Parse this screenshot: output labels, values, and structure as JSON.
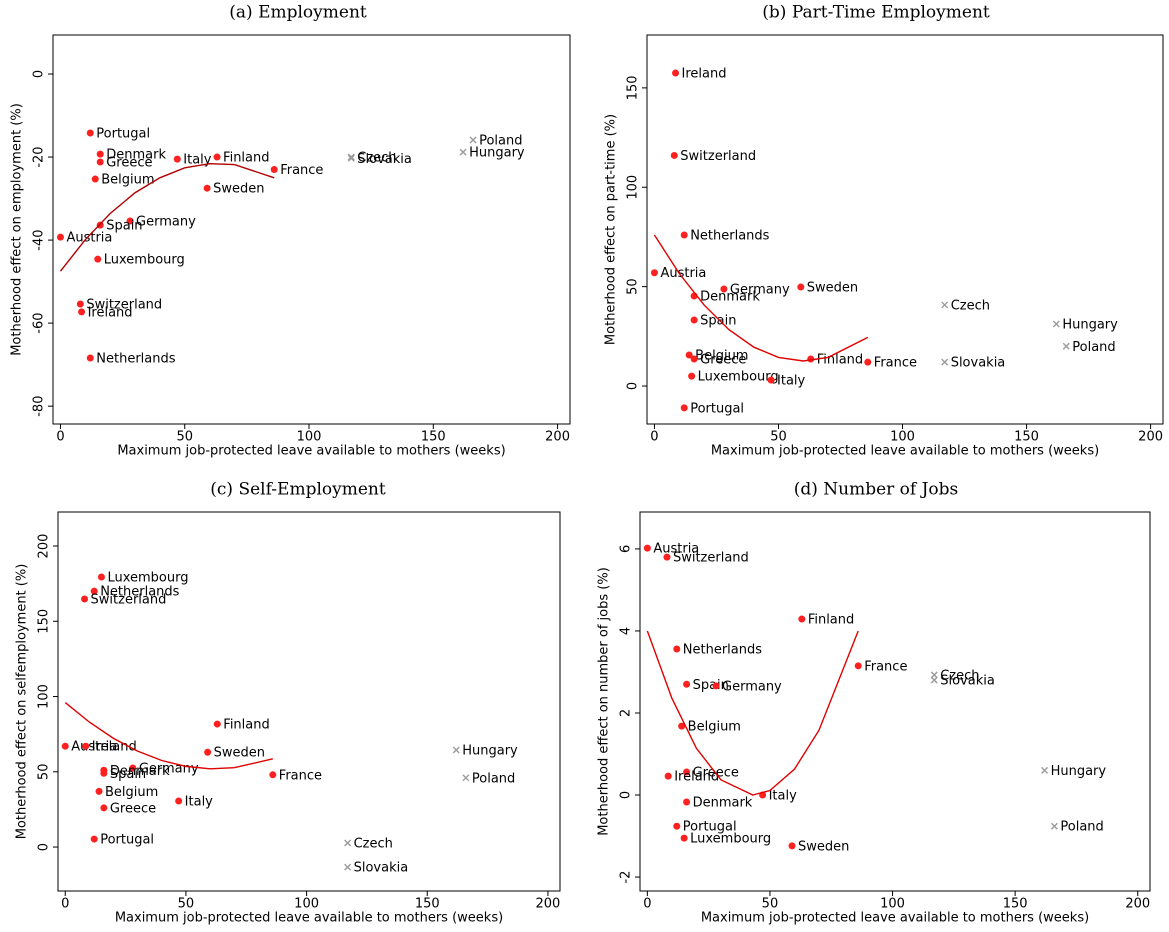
{
  "chart_data": [
    {
      "type": "scatter",
      "title": "(a) Employment",
      "xlabel": "Maximum job-protected leave available to mothers (weeks)",
      "ylabel": "Motherhood effect on employment (%)",
      "xlim": [
        -3,
        205
      ],
      "ylim": [
        -84.3,
        9.4
      ],
      "xticks": [
        0,
        50,
        100,
        150,
        200
      ],
      "yticks": [
        0,
        -20,
        -40,
        -60,
        -80
      ],
      "series": [
        {
          "marker": "circle",
          "color": "#ff2020",
          "labels": [
            "Portugal",
            "Denmark",
            "Greece",
            "Italy",
            "Finland",
            "France",
            "Belgium",
            "Sweden",
            "Germany",
            "Spain",
            "Austria",
            "Luxembourg",
            "Switzerland",
            "Ireland",
            "Netherlands"
          ],
          "x": [
            12,
            16,
            16,
            47,
            63,
            86,
            14,
            59,
            28,
            16,
            0,
            15,
            8,
            8.5,
            12
          ],
          "values": [
            -14.2,
            -19.3,
            -21.2,
            -20.5,
            -20,
            -23,
            -25.3,
            -27.5,
            -35.4,
            -36.4,
            -39.3,
            -44.6,
            -55.4,
            -57.3,
            -68.4
          ]
        },
        {
          "marker": "x",
          "color": "#9a9a9a",
          "labels": [
            "Poland",
            "Czech",
            "Slovakia",
            "Hungary"
          ],
          "x": [
            166,
            117,
            117,
            162
          ],
          "values": [
            -15.9,
            -20,
            -20.3,
            -18.8
          ]
        },
        {
          "marker": "line",
          "color": "#b00000",
          "x": [
            0,
            10,
            20,
            30,
            40,
            50,
            60,
            70,
            86
          ],
          "values": [
            -47.5,
            -39.9,
            -33.6,
            -28.6,
            -25,
            -22.6,
            -21.6,
            -21.8,
            -25
          ]
        }
      ]
    },
    {
      "type": "scatter",
      "title": "(b) Part-Time Employment",
      "xlabel": "Maximum job-protected leave available to mothers (weeks)",
      "ylabel": "Motherhood effect on part-time (%)",
      "xlim": [
        -3,
        205
      ],
      "ylim": [
        -19.1,
        176.6
      ],
      "xticks": [
        0,
        50,
        100,
        150,
        200
      ],
      "yticks": [
        0,
        50,
        100,
        150
      ],
      "series": [
        {
          "marker": "circle",
          "color": "#ff2020",
          "labels": [
            "Ireland",
            "Switzerland",
            "Netherlands",
            "Austria",
            "Germany",
            "Sweden",
            "Denmark",
            "Spain",
            "Belgium",
            "Greece",
            "Finland",
            "France",
            "Luxembourg",
            "Italy",
            "Portugal"
          ],
          "x": [
            8.5,
            8,
            12,
            0,
            28,
            59,
            16,
            16,
            14,
            16,
            63,
            86,
            15,
            47,
            12
          ],
          "values": [
            157.5,
            116,
            76,
            57,
            48.8,
            49.8,
            45.3,
            33.2,
            15.6,
            13.6,
            13.6,
            12,
            5,
            3,
            -11
          ]
        },
        {
          "marker": "x",
          "color": "#9a9a9a",
          "labels": [
            "Czech",
            "Hungary",
            "Poland",
            "Slovakia"
          ],
          "x": [
            117,
            162,
            166,
            117
          ],
          "values": [
            40.8,
            31.2,
            20,
            12
          ]
        },
        {
          "marker": "line",
          "color": "#e00000",
          "x": [
            0,
            10,
            20,
            30,
            40,
            50,
            60,
            70,
            86
          ],
          "values": [
            76,
            56.6,
            40.8,
            28.4,
            19.6,
            14.4,
            12.6,
            14.4,
            24.5
          ]
        }
      ]
    },
    {
      "type": "scatter",
      "title": "(c) Self-Employment",
      "xlabel": "Maximum job-protected leave available to mothers (weeks)",
      "ylabel": "Motherhood effect on selfemployment (%)",
      "xlim": [
        -3,
        205
      ],
      "ylim": [
        -29.2,
        222.6
      ],
      "xticks": [
        0,
        50,
        100,
        150,
        200
      ],
      "yticks": [
        0,
        50,
        100,
        150,
        200
      ],
      "series": [
        {
          "marker": "circle",
          "color": "#ff2020",
          "labels": [
            "Luxembourg",
            "Netherlands",
            "Switzerland",
            "Finland",
            "Austria",
            "Ireland",
            "Sweden",
            "Germany",
            "Denmark",
            "Spain",
            "France",
            "Belgium",
            "Italy",
            "Greece",
            "Portugal"
          ],
          "x": [
            15,
            12,
            8,
            63,
            0,
            8.5,
            59,
            28,
            16,
            16,
            86,
            14,
            47,
            16,
            12
          ],
          "values": [
            179.4,
            170,
            164.8,
            81.7,
            67,
            67,
            63,
            52.5,
            51,
            49,
            48,
            37,
            30.6,
            26,
            5.3
          ]
        },
        {
          "marker": "x",
          "color": "#9a9a9a",
          "labels": [
            "Hungary",
            "Poland",
            "Czech",
            "Slovakia"
          ],
          "x": [
            162,
            166,
            117,
            117
          ],
          "values": [
            64.5,
            46,
            2.7,
            -13.3
          ]
        },
        {
          "marker": "line",
          "color": "#e00000",
          "x": [
            0,
            10,
            20,
            30,
            40,
            50,
            60,
            70,
            86
          ],
          "values": [
            96,
            83,
            72.2,
            63.7,
            57.5,
            53.6,
            52,
            52.7,
            58.6
          ]
        }
      ]
    },
    {
      "type": "scatter",
      "title": "(d) Number of Jobs",
      "xlabel": "Maximum job-protected leave available to mothers (weeks)",
      "ylabel": "Motherhood effect on number of jobs (%)",
      "xlim": [
        -3,
        205
      ],
      "ylim": [
        -2.34,
        6.9
      ],
      "xticks": [
        0,
        50,
        100,
        150,
        200
      ],
      "yticks": [
        -2,
        0,
        2,
        4,
        6
      ],
      "series": [
        {
          "marker": "circle",
          "color": "#ff2020",
          "labels": [
            "Austria",
            "Switzerland",
            "Finland",
            "Netherlands",
            "France",
            "Spain",
            "Germany",
            "Belgium",
            "Greece",
            "Ireland",
            "Italy",
            "Denmark",
            "Portugal",
            "Luxembourg",
            "Sweden"
          ],
          "x": [
            0,
            8,
            63,
            12,
            86,
            16,
            28,
            14,
            16,
            8.5,
            47,
            16,
            12,
            15,
            59
          ],
          "values": [
            6.02,
            5.8,
            4.29,
            3.56,
            3.15,
            2.7,
            2.66,
            1.68,
            0.56,
            0.46,
            0,
            -0.17,
            -0.76,
            -1.05,
            -1.24
          ]
        },
        {
          "marker": "x",
          "color": "#9a9a9a",
          "labels": [
            "Czech",
            "Slovakia",
            "Hungary",
            "Poland"
          ],
          "x": [
            117,
            117,
            162,
            166
          ],
          "values": [
            2.93,
            2.8,
            0.6,
            -0.76
          ]
        },
        {
          "marker": "line",
          "color": "#e00000",
          "x": [
            0,
            10,
            20,
            30,
            43,
            50,
            60,
            70,
            86
          ],
          "values": [
            4,
            2.36,
            1.14,
            0.37,
            0,
            0.11,
            0.63,
            1.58,
            4
          ]
        }
      ]
    }
  ]
}
